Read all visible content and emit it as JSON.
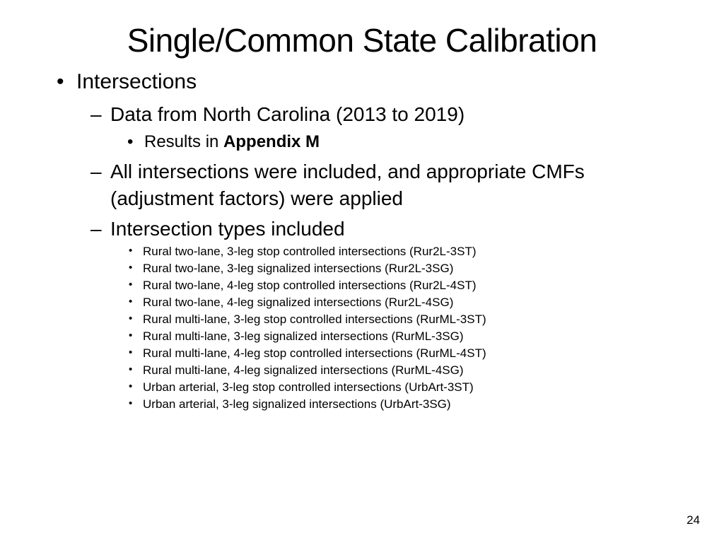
{
  "title": "Single/Common State Calibration",
  "level1_item": "Intersections",
  "level2": {
    "item1": "Data from North Carolina (2013 to 2019)",
    "item1_sub_prefix": "Results in ",
    "item1_sub_bold": "Appendix M",
    "item2": "All intersections were included, and appropriate CMFs (adjustment factors) were applied",
    "item3": "Intersection types included"
  },
  "types": [
    "Rural two-lane, 3-leg stop controlled intersections (Rur2L-3ST)",
    "Rural two-lane, 3-leg signalized intersections (Rur2L-3SG)",
    "Rural two-lane, 4-leg stop controlled intersections (Rur2L-4ST)",
    "Rural two-lane, 4-leg signalized intersections (Rur2L-4SG)",
    "Rural multi-lane, 3-leg stop controlled intersections (RurML-3ST)",
    "Rural multi-lane, 3-leg signalized intersections (RurML-3SG)",
    "Rural multi-lane, 4-leg stop controlled intersections (RurML-4ST)",
    "Rural multi-lane, 4-leg signalized intersections (RurML-4SG)",
    "Urban arterial, 3-leg stop controlled intersections (UrbArt-3ST)",
    "Urban arterial, 3-leg signalized intersections (UrbArt-3SG)"
  ],
  "page_number": "24",
  "style": {
    "background_color": "#ffffff",
    "text_color": "#000000",
    "font_family": "Arial",
    "title_fontsize": 46,
    "level1_fontsize": 30,
    "level2_fontsize": 28,
    "level3_fontsize": 24,
    "level4_fontsize": 17,
    "page_number_fontsize": 17,
    "slide_width": 1024,
    "slide_height": 768
  }
}
